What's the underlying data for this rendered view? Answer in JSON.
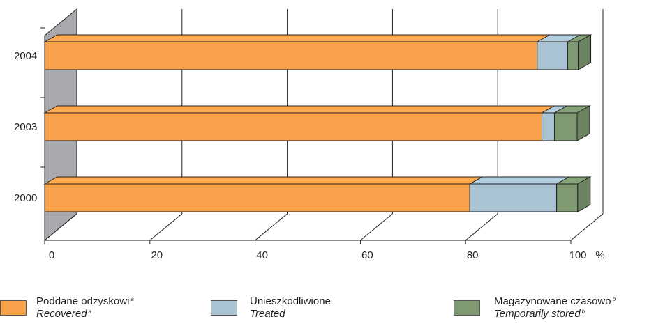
{
  "chart_data": {
    "type": "bar",
    "orientation": "horizontal",
    "stacked": true,
    "style": "3d",
    "categories": [
      "2004",
      "2003",
      "2000"
    ],
    "series": [
      {
        "name": "Poddane odzyskowi",
        "name_en": "Recovered",
        "note": "a",
        "color": "#f7a24a",
        "values": [
          93.6,
          94.5,
          80.8
        ]
      },
      {
        "name": "Unieszkodliwione",
        "name_en": "Treated",
        "note": "",
        "color": "#a9c3d3",
        "values": [
          5.8,
          2.4,
          16.5
        ]
      },
      {
        "name": "Magazynowane czasowo",
        "name_en": "Temporarily stored",
        "note": "b",
        "color": "#7f9a72",
        "values": [
          2.0,
          4.3,
          4.0
        ]
      }
    ],
    "x_ticks": [
      "0",
      "20",
      "40",
      "60",
      "80",
      "100"
    ],
    "x_unit": "%",
    "xlim": [
      0,
      100
    ],
    "grid": true,
    "legend_position": "bottom"
  }
}
